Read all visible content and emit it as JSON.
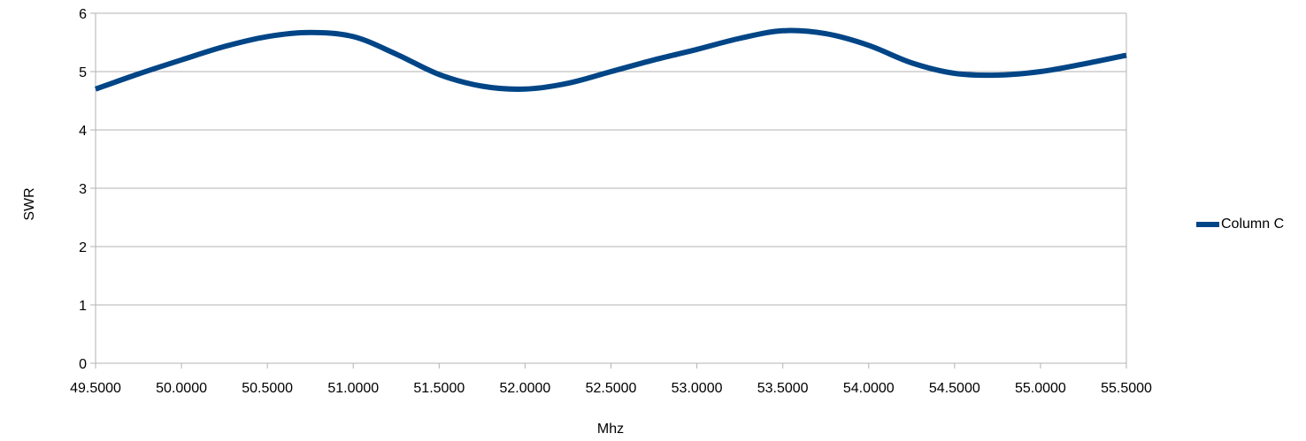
{
  "chart_data": {
    "type": "line",
    "title": "",
    "xlabel": "Mhz",
    "ylabel": "SWR",
    "xlim": [
      49.5,
      55.5
    ],
    "ylim": [
      0,
      6
    ],
    "x_ticks": [
      "49.5000",
      "50.0000",
      "50.5000",
      "51.0000",
      "51.5000",
      "52.0000",
      "52.5000",
      "53.0000",
      "53.5000",
      "54.0000",
      "54.5000",
      "55.0000",
      "55.5000"
    ],
    "y_ticks": [
      "0",
      "1",
      "2",
      "3",
      "4",
      "5",
      "6"
    ],
    "grid": true,
    "legend_position": "right",
    "series": [
      {
        "name": "Column C",
        "color": "#004586",
        "x": [
          49.5,
          49.75,
          50.0,
          50.25,
          50.5,
          50.75,
          51.0,
          51.25,
          51.5,
          51.75,
          52.0,
          52.25,
          52.5,
          52.75,
          53.0,
          53.25,
          53.5,
          53.75,
          54.0,
          54.25,
          54.5,
          54.75,
          55.0,
          55.25,
          55.5
        ],
        "y": [
          4.7,
          4.96,
          5.2,
          5.43,
          5.6,
          5.67,
          5.6,
          5.3,
          4.95,
          4.75,
          4.7,
          4.8,
          5.0,
          5.2,
          5.38,
          5.57,
          5.7,
          5.65,
          5.45,
          5.15,
          4.97,
          4.94,
          5.0,
          5.13,
          5.28
        ]
      }
    ]
  }
}
